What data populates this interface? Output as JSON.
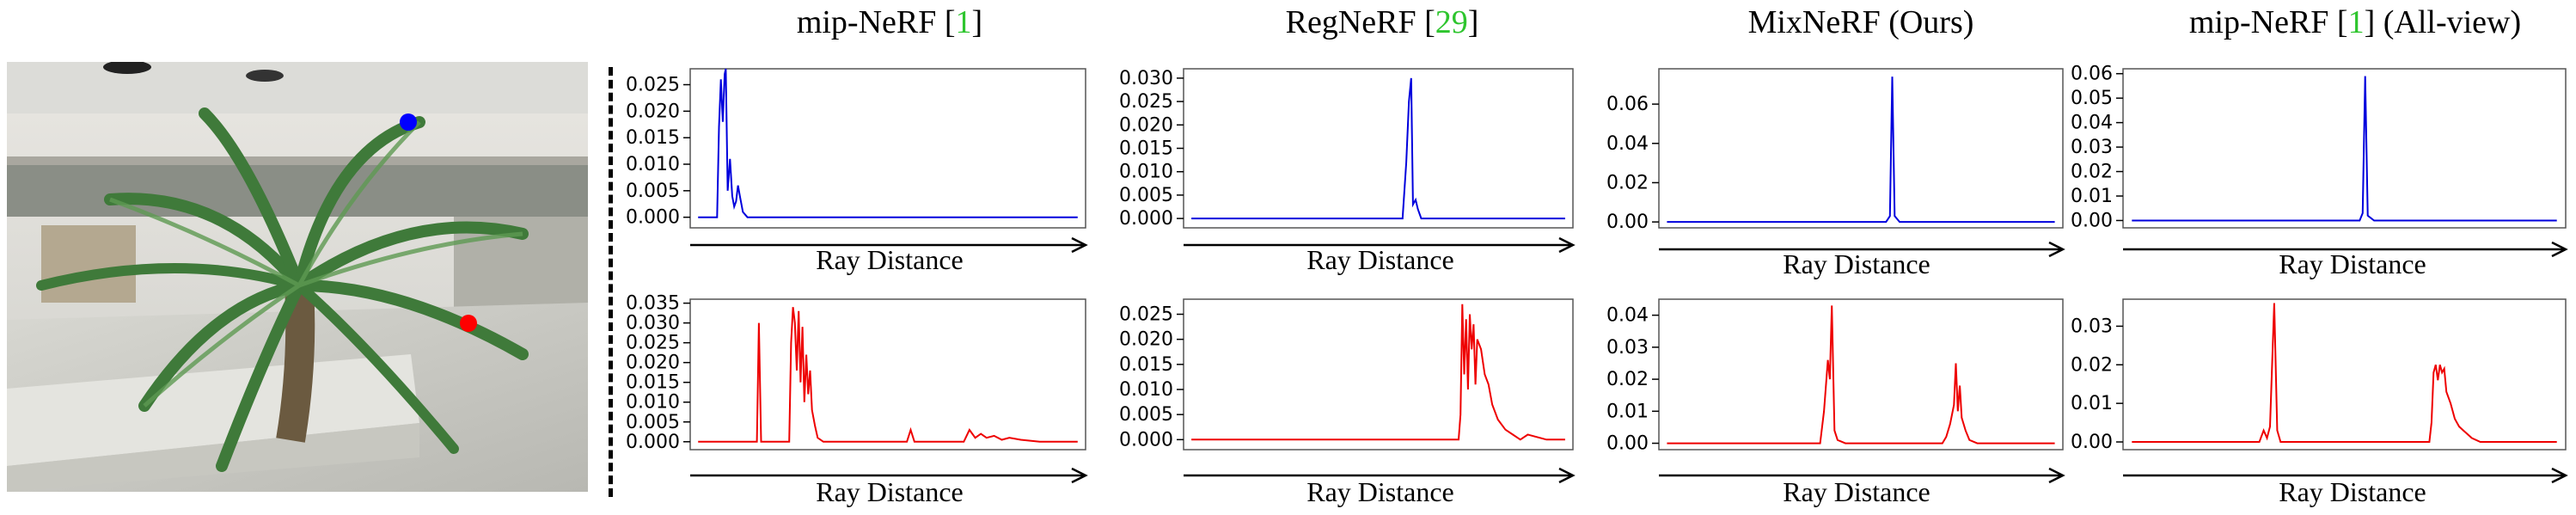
{
  "columns": [
    {
      "title_pre": "mip-NeRF [",
      "ref": "1",
      "title_post": "]"
    },
    {
      "title_pre": "RegNeRF [",
      "ref": "29",
      "title_post": "]"
    },
    {
      "title_pre": "MixNeRF (Ours)",
      "ref": "",
      "title_post": ""
    },
    {
      "title_pre": "mip-NeRF [",
      "ref": "1",
      "title_post": "] (All-view)"
    }
  ],
  "colors": {
    "top_series": "#0000dd",
    "bottom_series": "#ee0000",
    "marker_blue": "#0000ff",
    "marker_red": "#ff0000",
    "ref_green": "#2ec52e"
  },
  "chart_data": [
    {
      "type": "line",
      "panel": "mip-NeRF top",
      "xlabel": "Ray Distance",
      "ylabel": "",
      "ylim": [
        -0.002,
        0.028
      ],
      "yticks": [
        "0.000",
        "0.005",
        "0.010",
        "0.015",
        "0.020",
        "0.025"
      ],
      "color": "#0000dd",
      "points": [
        [
          0,
          0
        ],
        [
          0.05,
          0
        ],
        [
          0.055,
          0.017
        ],
        [
          0.06,
          0.026
        ],
        [
          0.065,
          0.018
        ],
        [
          0.07,
          0.027
        ],
        [
          0.073,
          0.028
        ],
        [
          0.078,
          0.005
        ],
        [
          0.084,
          0.011
        ],
        [
          0.09,
          0.004
        ],
        [
          0.095,
          0.002
        ],
        [
          0.1,
          0.003
        ],
        [
          0.105,
          0.006
        ],
        [
          0.11,
          0.004
        ],
        [
          0.118,
          0.001
        ],
        [
          0.13,
          0
        ],
        [
          1,
          0
        ]
      ]
    },
    {
      "type": "line",
      "panel": "RegNeRF top",
      "xlabel": "Ray Distance",
      "ylabel": "",
      "ylim": [
        -0.002,
        0.032
      ],
      "yticks": [
        "0.000",
        "0.005",
        "0.010",
        "0.015",
        "0.020",
        "0.025",
        "0.030"
      ],
      "color": "#0000dd",
      "points": [
        [
          0,
          0
        ],
        [
          0.565,
          0
        ],
        [
          0.575,
          0.012
        ],
        [
          0.582,
          0.025
        ],
        [
          0.588,
          0.03
        ],
        [
          0.593,
          0.003
        ],
        [
          0.6,
          0.004
        ],
        [
          0.606,
          0.002
        ],
        [
          0.615,
          0
        ],
        [
          1,
          0
        ]
      ]
    },
    {
      "type": "line",
      "panel": "MixNeRF top",
      "xlabel": "Ray Distance",
      "ylabel": "",
      "ylim": [
        -0.003,
        0.078
      ],
      "yticks": [
        "0.00",
        "0.02",
        "0.04",
        "0.06"
      ],
      "color": "#0000dd",
      "points": [
        [
          0,
          0
        ],
        [
          0.565,
          0
        ],
        [
          0.575,
          0.003
        ],
        [
          0.581,
          0.074
        ],
        [
          0.587,
          0.003
        ],
        [
          0.6,
          0
        ],
        [
          1,
          0
        ]
      ]
    },
    {
      "type": "line",
      "panel": "mip-NeRF All-view top",
      "xlabel": "Ray Distance",
      "ylabel": "",
      "ylim": [
        -0.003,
        0.062
      ],
      "yticks": [
        "0.00",
        "0.01",
        "0.02",
        "0.03",
        "0.04",
        "0.05",
        "0.06"
      ],
      "color": "#0000dd",
      "points": [
        [
          0,
          0
        ],
        [
          0.536,
          0
        ],
        [
          0.543,
          0.003
        ],
        [
          0.549,
          0.059
        ],
        [
          0.555,
          0.002
        ],
        [
          0.57,
          0
        ],
        [
          1,
          0
        ]
      ]
    },
    {
      "type": "line",
      "panel": "mip-NeRF bottom",
      "xlabel": "Ray Distance",
      "ylabel": "",
      "ylim": [
        -0.002,
        0.036
      ],
      "yticks": [
        "0.000",
        "0.005",
        "0.010",
        "0.015",
        "0.020",
        "0.025",
        "0.030",
        "0.035"
      ],
      "color": "#ee0000",
      "points": [
        [
          0,
          0
        ],
        [
          0.155,
          0
        ],
        [
          0.16,
          0.03
        ],
        [
          0.166,
          0
        ],
        [
          0.24,
          0
        ],
        [
          0.245,
          0.025
        ],
        [
          0.25,
          0.034
        ],
        [
          0.255,
          0.03
        ],
        [
          0.26,
          0.018
        ],
        [
          0.265,
          0.033
        ],
        [
          0.27,
          0.015
        ],
        [
          0.275,
          0.029
        ],
        [
          0.28,
          0.01
        ],
        [
          0.285,
          0.022
        ],
        [
          0.29,
          0.012
        ],
        [
          0.295,
          0.018
        ],
        [
          0.3,
          0.008
        ],
        [
          0.308,
          0.004
        ],
        [
          0.315,
          0.001
        ],
        [
          0.33,
          0
        ],
        [
          0.55,
          0
        ],
        [
          0.56,
          0.003
        ],
        [
          0.57,
          0
        ],
        [
          0.7,
          0
        ],
        [
          0.715,
          0.003
        ],
        [
          0.73,
          0.001
        ],
        [
          0.745,
          0.002
        ],
        [
          0.76,
          0.001
        ],
        [
          0.78,
          0.0015
        ],
        [
          0.8,
          0.0005
        ],
        [
          0.82,
          0.001
        ],
        [
          0.85,
          0.0005
        ],
        [
          0.9,
          0
        ],
        [
          1,
          0
        ]
      ]
    },
    {
      "type": "line",
      "panel": "RegNeRF bottom",
      "xlabel": "Ray Distance",
      "ylabel": "",
      "ylim": [
        -0.002,
        0.028
      ],
      "yticks": [
        "0.000",
        "0.005",
        "0.010",
        "0.015",
        "0.020",
        "0.025"
      ],
      "color": "#ee0000",
      "points": [
        [
          0,
          0
        ],
        [
          0.715,
          0
        ],
        [
          0.72,
          0.005
        ],
        [
          0.725,
          0.027
        ],
        [
          0.73,
          0.013
        ],
        [
          0.735,
          0.024
        ],
        [
          0.74,
          0.01
        ],
        [
          0.745,
          0.025
        ],
        [
          0.75,
          0.018
        ],
        [
          0.755,
          0.023
        ],
        [
          0.76,
          0.011
        ],
        [
          0.765,
          0.02
        ],
        [
          0.775,
          0.018
        ],
        [
          0.785,
          0.013
        ],
        [
          0.795,
          0.011
        ],
        [
          0.805,
          0.007
        ],
        [
          0.82,
          0.004
        ],
        [
          0.84,
          0.002
        ],
        [
          0.86,
          0.001
        ],
        [
          0.88,
          0
        ],
        [
          0.9,
          0.001
        ],
        [
          0.95,
          0
        ],
        [
          1,
          0
        ]
      ]
    },
    {
      "type": "line",
      "panel": "MixNeRF bottom",
      "xlabel": "Ray Distance",
      "ylabel": "",
      "ylim": [
        -0.002,
        0.045
      ],
      "yticks": [
        "0.00",
        "0.01",
        "0.02",
        "0.03",
        "0.04"
      ],
      "color": "#ee0000",
      "points": [
        [
          0,
          0
        ],
        [
          0.395,
          0
        ],
        [
          0.405,
          0.01
        ],
        [
          0.415,
          0.026
        ],
        [
          0.42,
          0.02
        ],
        [
          0.425,
          0.043
        ],
        [
          0.432,
          0.004
        ],
        [
          0.44,
          0.001
        ],
        [
          0.46,
          0
        ],
        [
          0.71,
          0
        ],
        [
          0.72,
          0.002
        ],
        [
          0.73,
          0.006
        ],
        [
          0.74,
          0.012
        ],
        [
          0.745,
          0.025
        ],
        [
          0.75,
          0.01
        ],
        [
          0.755,
          0.018
        ],
        [
          0.76,
          0.008
        ],
        [
          0.77,
          0.004
        ],
        [
          0.78,
          0.001
        ],
        [
          0.8,
          0
        ],
        [
          1,
          0
        ]
      ]
    },
    {
      "type": "line",
      "panel": "mip-NeRF All-view bottom",
      "xlabel": "Ray Distance",
      "ylabel": "",
      "ylim": [
        -0.002,
        0.037
      ],
      "yticks": [
        "0.00",
        "0.01",
        "0.02",
        "0.03"
      ],
      "color": "#ee0000",
      "points": [
        [
          0,
          0
        ],
        [
          0.3,
          0
        ],
        [
          0.31,
          0.003
        ],
        [
          0.318,
          0.001
        ],
        [
          0.325,
          0.004
        ],
        [
          0.335,
          0.036
        ],
        [
          0.342,
          0.003
        ],
        [
          0.35,
          0
        ],
        [
          0.7,
          0
        ],
        [
          0.705,
          0.005
        ],
        [
          0.71,
          0.018
        ],
        [
          0.715,
          0.02
        ],
        [
          0.72,
          0.016
        ],
        [
          0.725,
          0.02
        ],
        [
          0.73,
          0.018
        ],
        [
          0.735,
          0.019
        ],
        [
          0.74,
          0.013
        ],
        [
          0.75,
          0.01
        ],
        [
          0.76,
          0.006
        ],
        [
          0.77,
          0.004
        ],
        [
          0.78,
          0.003
        ],
        [
          0.8,
          0.001
        ],
        [
          0.82,
          0
        ],
        [
          1,
          0
        ]
      ]
    }
  ]
}
